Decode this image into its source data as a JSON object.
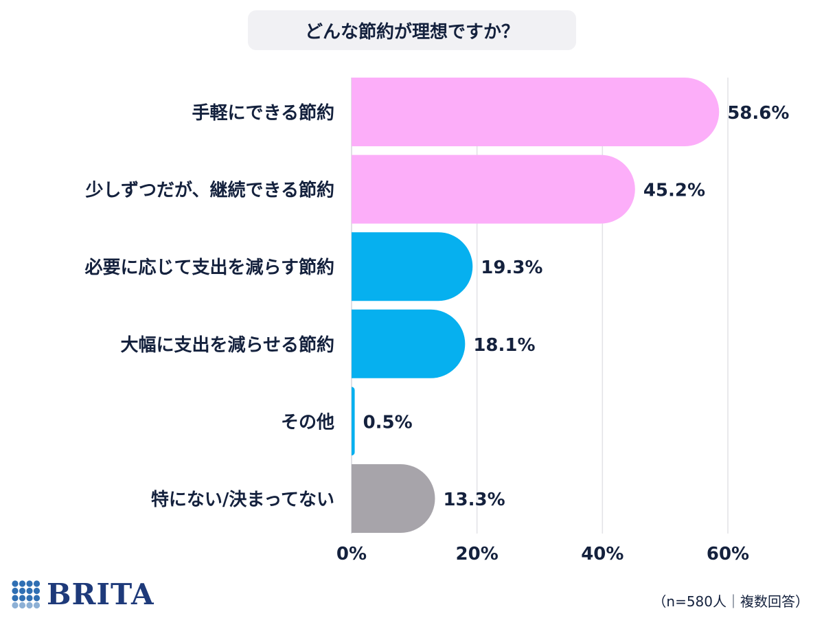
{
  "title": "どんな節約が理想ですか？",
  "note": "（n=580人｜複数回答）",
  "logo": {
    "text": "BRITA",
    "color": "#1e3a7a",
    "dot_color": "#2f6fb3"
  },
  "chart_data": {
    "type": "bar",
    "orientation": "horizontal",
    "categories": [
      "手軽にできる節約",
      "少しずつだが、継続できる節約",
      "必要に応じて支出を減らす節約",
      "大幅に支出を減らせる節約",
      "その他",
      "特にない/決まってない"
    ],
    "values": [
      58.6,
      45.2,
      19.3,
      18.1,
      0.5,
      13.3
    ],
    "value_labels": [
      "58.6%",
      "45.2%",
      "19.3%",
      "18.1%",
      "0.5%",
      "13.3%"
    ],
    "colors": [
      "#fcaef9",
      "#fcaef9",
      "#06b0ef",
      "#06b0ef",
      "#06b0ef",
      "#a7a4aa"
    ],
    "xlim": [
      0,
      60
    ],
    "xticks": [
      0,
      20,
      40,
      60
    ],
    "xtick_labels": [
      "0%",
      "20%",
      "40%",
      "60%"
    ],
    "grid": true
  }
}
